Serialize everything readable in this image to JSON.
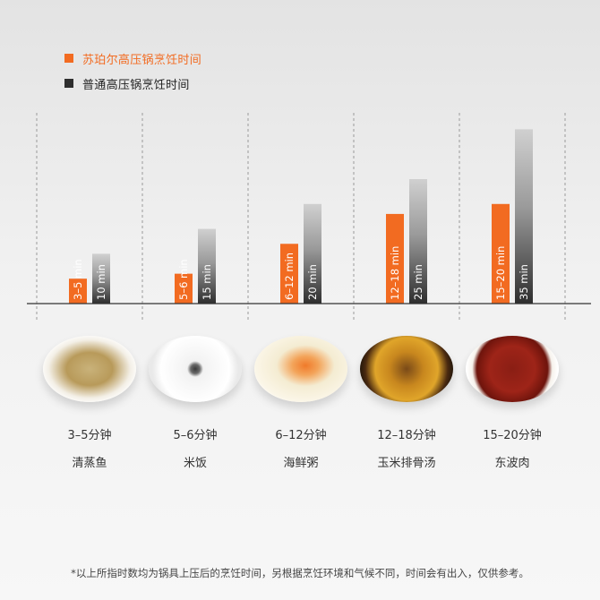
{
  "legend": [
    {
      "label": "苏珀尔高压锅烹饪时间",
      "color": "#f26b21"
    },
    {
      "label": "普通高压锅烹饪时间",
      "color": "#2e2e2e"
    }
  ],
  "chart_data": {
    "type": "bar",
    "categories": [
      "清蒸鱼",
      "米饭",
      "海鲜粥",
      "玉米排骨汤",
      "东波肉"
    ],
    "series": [
      {
        "name": "苏珀尔高压锅烹饪时间",
        "color": "#f26b21",
        "values": [
          5,
          6,
          12,
          18,
          20
        ],
        "labels": [
          "3–5 min",
          "5–6 min",
          "6–12 min",
          "12–18 min",
          "15–20 min"
        ]
      },
      {
        "name": "普通高压锅烹饪时间",
        "color": "#3a3a3a",
        "values": [
          10,
          15,
          20,
          25,
          35
        ],
        "labels": [
          "10 min",
          "15 min",
          "20 min",
          "25 min",
          "35 min"
        ]
      }
    ],
    "ylim": [
      0,
      41
    ],
    "grid": "vertical dashed separators",
    "legend_position": "top-left"
  },
  "dishes": [
    {
      "time": "3–5分钟",
      "name": "清蒸鱼",
      "plate": "fish"
    },
    {
      "time": "5–6分钟",
      "name": "米饭",
      "plate": "rice"
    },
    {
      "time": "6–12分钟",
      "name": "海鲜粥",
      "plate": "congee"
    },
    {
      "time": "12–18分钟",
      "name": "玉米排骨汤",
      "plate": "soup"
    },
    {
      "time": "15–20分钟",
      "name": "东波肉",
      "plate": "pork"
    }
  ],
  "footnote": "*以上所指时数均为锅具上压后的烹饪时间，另根据烹饪环境和气候不同，时间会有出入，仅供参考。"
}
